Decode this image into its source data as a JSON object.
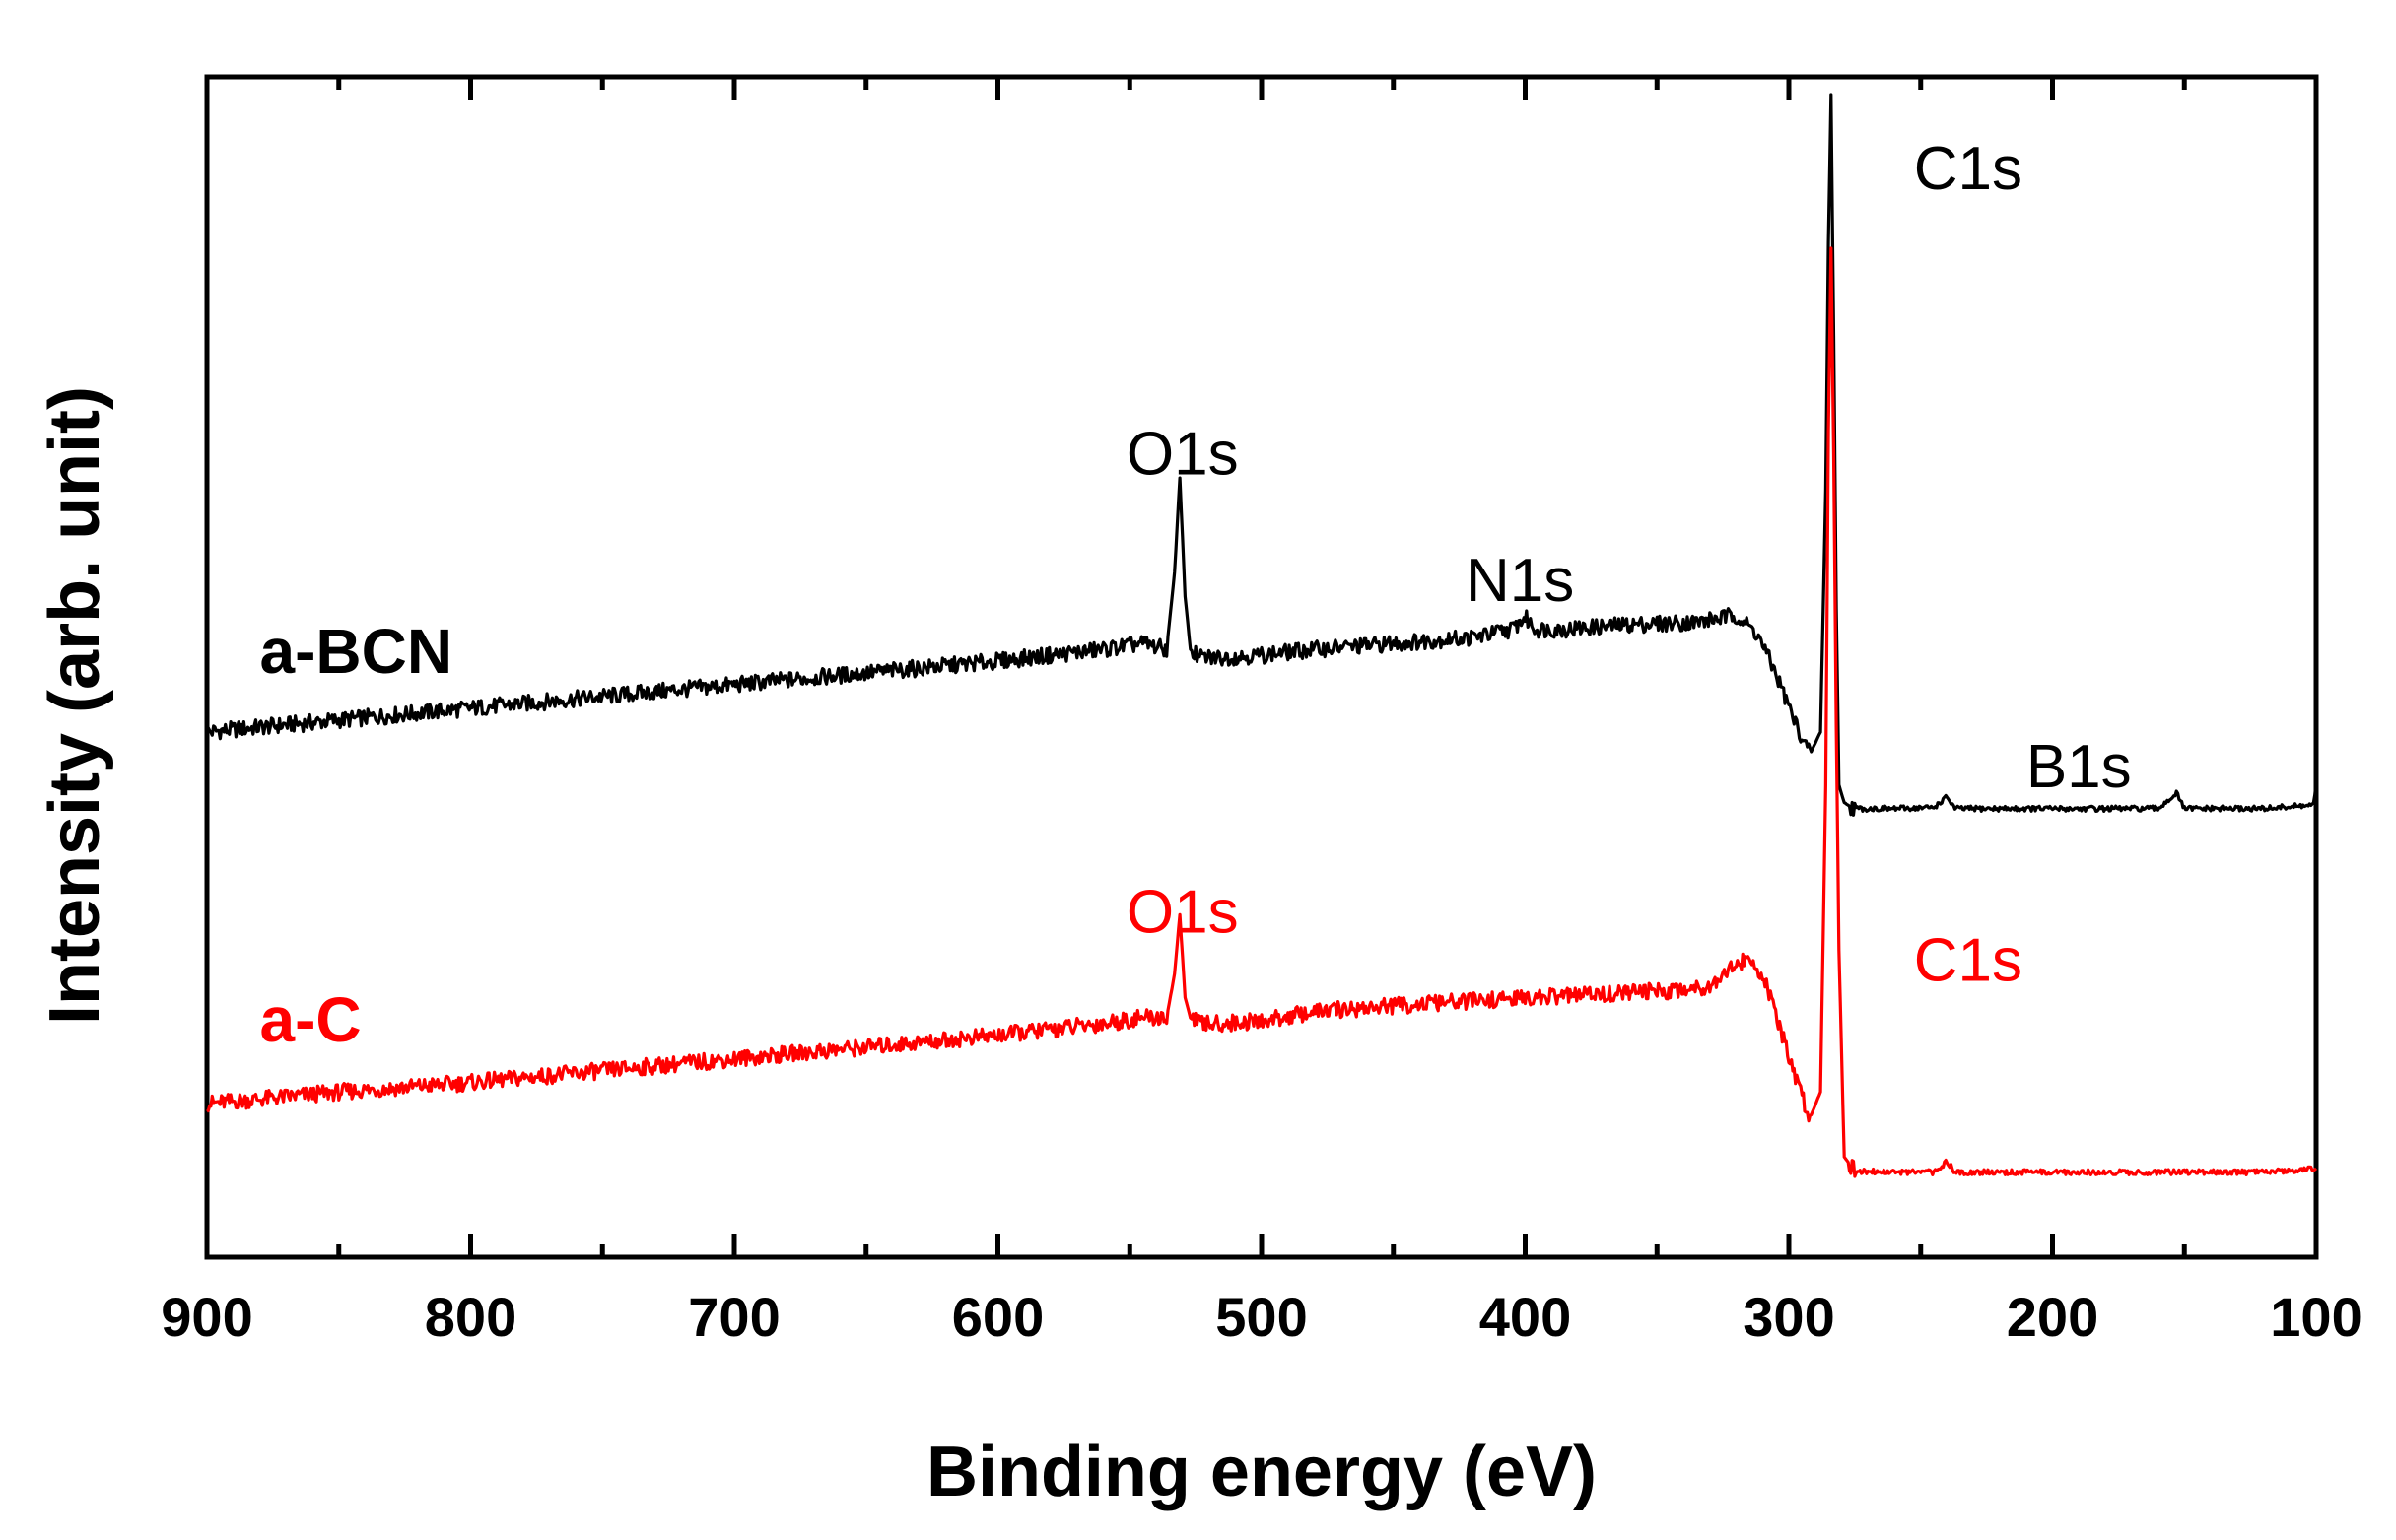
{
  "chart_data": {
    "type": "line",
    "title": "",
    "xlabel": "Binding energy (eV)",
    "ylabel": "Intensity (arb. unit)",
    "xlim": [
      900,
      100
    ],
    "ylim": [
      0,
      100
    ],
    "x_ticks": [
      "900",
      "800",
      "700",
      "600",
      "500",
      "400",
      "300",
      "200",
      "100"
    ],
    "x_tick_values": [
      900,
      800,
      700,
      600,
      500,
      400,
      300,
      200,
      100
    ],
    "y_ticks_shown": false,
    "grid": false,
    "series": [
      {
        "name": "a-BCN",
        "color": "#000000",
        "x": [
          900,
          850,
          800,
          750,
          700,
          650,
          600,
          560,
          545,
          536,
          533,
          531,
          529,
          527,
          524,
          515,
          500,
          480,
          450,
          420,
          405,
          400,
          396,
          385,
          360,
          335,
          320,
          312,
          305,
          298,
          292,
          288,
          286,
          285,
          284,
          283,
          282,
          281,
          279,
          275,
          260,
          245,
          240,
          237,
          220,
          200,
          160,
          153,
          150,
          140,
          120,
          101,
          100
        ],
        "values": [
          44.5,
          45.5,
          46.5,
          47.5,
          48.5,
          49.5,
          50.5,
          51.5,
          52.0,
          51.5,
          58,
          66,
          56,
          51.5,
          50.8,
          50.8,
          51.0,
          51.5,
          52.0,
          52.5,
          53.2,
          54.2,
          53.2,
          53.2,
          53.6,
          53.8,
          54.4,
          52.8,
          49.5,
          45.5,
          42.6,
          44.5,
          65,
          86,
          98.5,
          78,
          55,
          40,
          38.5,
          38.0,
          38.0,
          38.1,
          39.0,
          38.0,
          38.0,
          38.0,
          38.0,
          39.3,
          38.0,
          38.0,
          38.0,
          38.3,
          40.0
        ]
      },
      {
        "name": "a-C",
        "color": "#ff0000",
        "x": [
          900,
          850,
          800,
          750,
          700,
          650,
          600,
          560,
          545,
          536,
          533,
          531,
          529,
          527,
          524,
          515,
          500,
          480,
          450,
          420,
          380,
          345,
          330,
          322,
          315,
          310,
          305,
          298,
          292,
          288,
          286,
          285,
          284,
          283,
          282,
          281,
          279,
          275,
          260,
          245,
          240,
          237,
          220,
          200,
          160,
          120,
          100
        ],
        "values": [
          13.0,
          14.0,
          14.8,
          15.8,
          16.8,
          17.8,
          18.8,
          19.8,
          20.3,
          20.3,
          24,
          29,
          22,
          20.3,
          19.8,
          19.8,
          20.0,
          20.8,
          21.3,
          21.7,
          22.2,
          22.6,
          23.0,
          24.6,
          25.2,
          24.0,
          20.5,
          15.5,
          11.8,
          14.0,
          40,
          70,
          85.5,
          68,
          45,
          26,
          8.5,
          7.3,
          7.2,
          7.2,
          8.1,
          7.2,
          7.2,
          7.2,
          7.2,
          7.2,
          7.5
        ]
      }
    ],
    "series_labels": [
      {
        "text": "a-BCN",
        "color": "#000000",
        "x": 880,
        "y": 49.5
      },
      {
        "text": "a-C",
        "color": "#ff0000",
        "x": 880,
        "y": 18.3
      }
    ],
    "annotations": [
      {
        "text": "C1s",
        "color": "#000000",
        "x": 232,
        "y": 90.5
      },
      {
        "text": "O1s",
        "color": "#000000",
        "x": 530,
        "y": 66.3
      },
      {
        "text": "N1s",
        "color": "#000000",
        "x": 402,
        "y": 55.6
      },
      {
        "text": "B1s",
        "color": "#000000",
        "x": 190,
        "y": 39.8
      },
      {
        "text": "O1s",
        "color": "#ff0000",
        "x": 530,
        "y": 27.5
      },
      {
        "text": "C1s",
        "color": "#ff0000",
        "x": 232,
        "y": 23.4
      }
    ]
  }
}
